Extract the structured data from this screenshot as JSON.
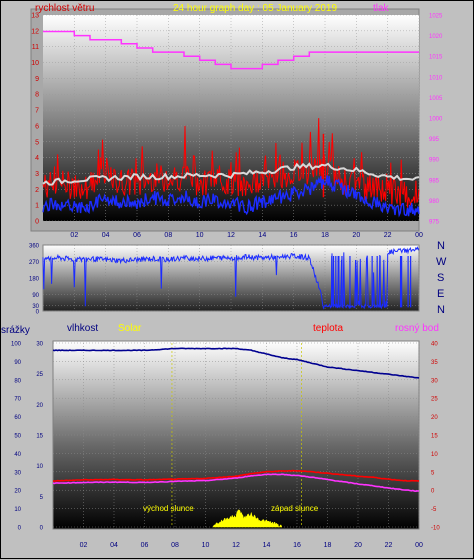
{
  "header": {
    "title": "24 hour graph day : 05 January 2019",
    "wind_label": "rychlost větru",
    "pressure_label": "tlak"
  },
  "panel_middle": {
    "compass": [
      "N",
      "W",
      "S",
      "E",
      "N"
    ]
  },
  "panel_bottom": {
    "rain_label": "srážky",
    "humidity_label": "vlhkost",
    "solar_label": "Solar",
    "temp_label": "teplota",
    "dew_label": "rosný bod",
    "sunrise_label": "východ slunce",
    "sunset_label": "západ slunce"
  },
  "colors": {
    "wind_red": "#ff0000",
    "wind_gust": "#e00000",
    "wind_avg": "#1c2cff",
    "wind_dir": "#1c2cff",
    "pressure": "#ff33ff",
    "trend": "#d8d8d8",
    "humidity": "#000090",
    "temperature": "#ff0000",
    "dewpoint": "#ff33ff",
    "solar": "#ffff00",
    "axis_left": "#d00000",
    "axis_right": "#ff33ff",
    "axis_time": "#000080",
    "sun_line": "#c8c800"
  },
  "chart_data": [
    {
      "type": "line",
      "title": "24 hour graph day : 05 January 2019",
      "x_ticks": [
        "02",
        "04",
        "06",
        "08",
        "10",
        "12",
        "14",
        "16",
        "18",
        "20",
        "22",
        "00"
      ],
      "y_left": {
        "label": "rychlost větru",
        "range": [
          0,
          13
        ],
        "ticks": [
          0,
          1,
          2,
          3,
          4,
          5,
          6,
          7,
          8,
          9,
          10,
          11,
          12,
          13
        ]
      },
      "y_right": {
        "label": "tlak",
        "range": [
          975,
          1025
        ],
        "ticks": [
          975,
          980,
          985,
          990,
          995,
          1000,
          1005,
          1010,
          1015,
          1020,
          1025
        ]
      },
      "series": [
        {
          "name": "rychlost větru",
          "axis": "left",
          "hours": [
            0,
            1,
            2,
            3,
            4,
            5,
            6,
            7,
            8,
            9,
            10,
            11,
            12,
            13,
            14,
            15,
            16,
            17,
            18,
            19,
            20,
            21,
            22,
            23,
            24
          ],
          "values": [
            2.2,
            2.4,
            2.2,
            2.3,
            2.6,
            2.5,
            2.3,
            2.8,
            2.6,
            2.9,
            2.4,
            2.7,
            2.4,
            2.2,
            2.6,
            2.9,
            3.0,
            3.2,
            3.4,
            2.6,
            2.3,
            2.1,
            1.8,
            1.6,
            1.7
          ]
        },
        {
          "name": "",
          "axis": "left",
          "hours": [
            0,
            1,
            2,
            3,
            4,
            5,
            6,
            7,
            8,
            9,
            10,
            11,
            12,
            13,
            14,
            15,
            16,
            17,
            18,
            19,
            20,
            21,
            22,
            23,
            24
          ],
          "values": [
            0.9,
            1.1,
            0.8,
            1.0,
            1.4,
            1.2,
            1.1,
            1.5,
            1.3,
            1.6,
            1.2,
            1.3,
            1.1,
            0.9,
            1.2,
            1.5,
            1.7,
            2.0,
            2.6,
            2.1,
            1.6,
            1.2,
            0.8,
            0.7,
            0.8
          ]
        },
        {
          "name": "",
          "axis": "left",
          "hours": [
            0,
            2,
            4,
            6,
            8,
            10,
            12,
            14,
            16,
            18,
            20,
            22,
            24
          ],
          "values": [
            2.4,
            2.6,
            2.7,
            2.8,
            2.8,
            2.9,
            2.9,
            3.1,
            3.4,
            3.5,
            3.2,
            2.8,
            2.6
          ]
        },
        {
          "name": "tlak",
          "axis": "right",
          "hours": [
            0,
            1,
            2,
            3,
            4,
            5,
            6,
            7,
            8,
            9,
            10,
            11,
            12,
            13,
            14,
            15,
            16,
            17,
            18,
            19,
            20,
            21,
            22,
            23,
            24
          ],
          "values": [
            1021,
            1021,
            1020,
            1019,
            1019,
            1018,
            1017,
            1016,
            1016,
            1015,
            1014,
            1013,
            1012,
            1012,
            1013,
            1014,
            1015,
            1016,
            1016,
            1016,
            1016,
            1016,
            1016,
            1016,
            1016
          ]
        }
      ]
    },
    {
      "type": "scatter",
      "title": "",
      "x_ticks": [
        "02",
        "04",
        "06",
        "08",
        "10",
        "12",
        "14",
        "16",
        "18",
        "20",
        "22",
        "00"
      ],
      "y_left": {
        "label": "",
        "range": [
          0,
          360
        ],
        "ticks": [
          0,
          30,
          90,
          180,
          270,
          360
        ]
      },
      "y_right_labels": [
        "N",
        "W",
        "S",
        "E",
        "N"
      ],
      "series": [
        {
          "name": "",
          "hours": [
            0,
            1,
            2,
            3,
            4,
            5,
            6,
            7,
            8,
            9,
            10,
            11,
            12,
            13,
            14,
            15,
            16,
            17,
            18,
            19,
            20,
            21,
            22,
            23,
            24
          ],
          "values": [
            285,
            290,
            280,
            285,
            280,
            275,
            280,
            285,
            280,
            290,
            285,
            290,
            290,
            295,
            290,
            295,
            300,
            290,
            25,
            20,
            25,
            30,
            320,
            330,
            335
          ]
        }
      ]
    },
    {
      "type": "line",
      "title": "",
      "x_ticks": [
        "02",
        "04",
        "06",
        "08",
        "10",
        "12",
        "14",
        "16",
        "18",
        "20",
        "22",
        "00"
      ],
      "y_left": {
        "label": "srážky / vlhkost / Solar",
        "range": [
          0,
          100
        ],
        "ticks": [
          0,
          10,
          20,
          30,
          40,
          50,
          60,
          70,
          80,
          90,
          100
        ]
      },
      "y_left2": {
        "range": [
          0,
          30
        ],
        "ticks": [
          0,
          5,
          10,
          15,
          20,
          25,
          30
        ]
      },
      "y_right": {
        "label": "teplota / rosný bod",
        "range": [
          -10,
          40
        ],
        "ticks": [
          -10,
          -5,
          0,
          5,
          10,
          15,
          20,
          25,
          30,
          35,
          40
        ]
      },
      "annotations": [
        {
          "text": "východ slunce",
          "hour": 7.8
        },
        {
          "text": "západ slunce",
          "hour": 16.3
        }
      ],
      "series": [
        {
          "name": "vlhkost",
          "axis": "left",
          "hours": [
            0,
            2,
            4,
            6,
            8,
            10,
            12,
            13,
            14,
            15,
            16,
            17,
            18,
            19,
            20,
            21,
            22,
            23,
            24
          ],
          "values": [
            96,
            96,
            96,
            96,
            97,
            97,
            97,
            96,
            94,
            92,
            91,
            89,
            87,
            86,
            85,
            84,
            83,
            82,
            81
          ]
        },
        {
          "name": "teplota",
          "axis": "right",
          "hours": [
            0,
            2,
            4,
            6,
            8,
            10,
            12,
            13,
            14,
            15,
            16,
            17,
            18,
            19,
            20,
            21,
            22,
            23,
            24
          ],
          "values": [
            2.5,
            2.8,
            2.9,
            2.8,
            3.0,
            3.2,
            3.8,
            4.5,
            5.0,
            5.2,
            5.3,
            5.0,
            4.6,
            4.2,
            3.8,
            3.5,
            3.0,
            2.6,
            2.5
          ]
        },
        {
          "name": "rosný bod",
          "axis": "right",
          "hours": [
            0,
            2,
            4,
            6,
            8,
            10,
            12,
            13,
            14,
            15,
            16,
            17,
            18,
            19,
            20,
            21,
            22,
            23,
            24
          ],
          "values": [
            1.9,
            2.1,
            2.2,
            2.1,
            2.4,
            2.6,
            3.3,
            3.9,
            4.3,
            4.3,
            4.0,
            3.5,
            2.9,
            2.3,
            1.7,
            1.2,
            0.6,
            0.1,
            -0.3
          ]
        },
        {
          "name": "Solar",
          "axis": "left",
          "hours": [
            10.5,
            11,
            11.5,
            12,
            12.2,
            12.5,
            13,
            13.5,
            14,
            14.5,
            15
          ],
          "values": [
            1,
            3,
            5,
            6,
            10,
            5,
            7,
            4,
            3,
            2,
            0
          ]
        }
      ]
    }
  ]
}
